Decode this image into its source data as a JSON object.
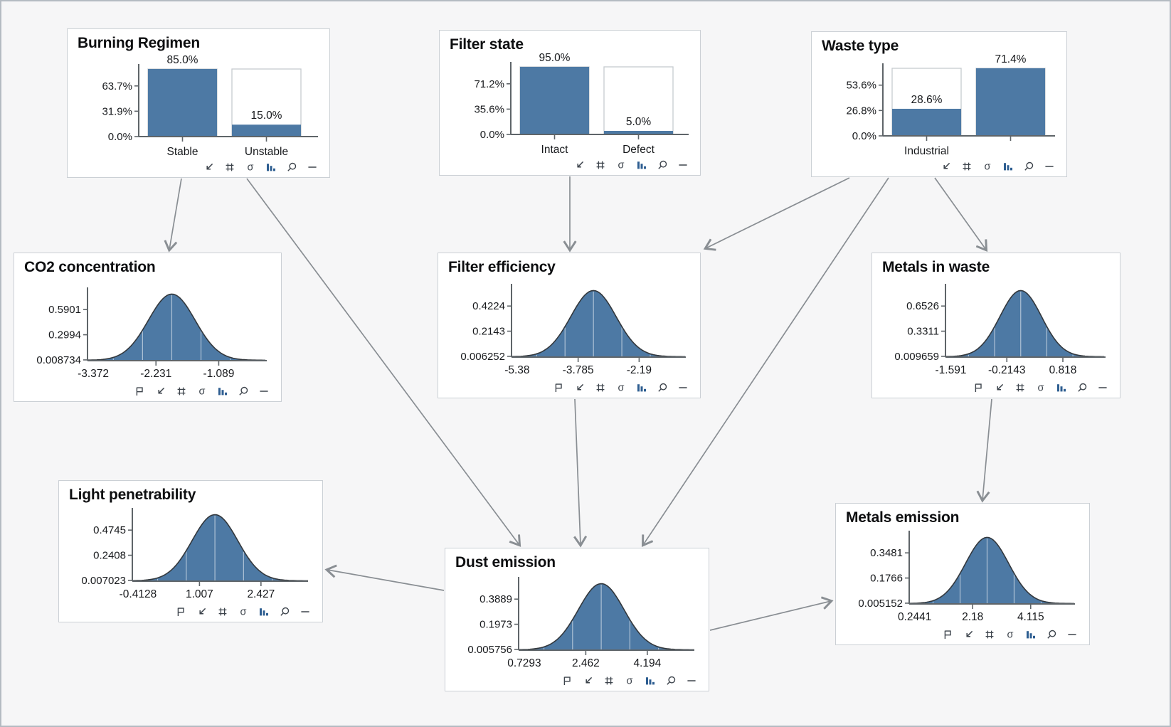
{
  "app": {
    "background": "#f6f6f7",
    "accent": "#4d79a4",
    "arrow_color": "#898e93"
  },
  "nodes": [
    {
      "id": "burning-regimen",
      "title": "Burning Regimen",
      "chart": {
        "type": "bar",
        "categories": [
          "Stable",
          "Unstable"
        ],
        "values": [
          85.0,
          15.0
        ],
        "value_labels": [
          "85.0%",
          "15.0%"
        ],
        "ymax": 85.0,
        "yticks": [
          0.0,
          31.9,
          63.7
        ],
        "ytick_labels": [
          "0.0%",
          "31.9%",
          "63.7%"
        ]
      },
      "toolbar": [
        "collapse-icon",
        "grid-icon",
        "sigma-icon",
        "barchart-icon",
        "zoom-icon",
        "minus-icon"
      ]
    },
    {
      "id": "filter-state",
      "title": "Filter state",
      "chart": {
        "type": "bar",
        "categories": [
          "Intact",
          "Defect"
        ],
        "values": [
          95.0,
          5.0
        ],
        "value_labels": [
          "95.0%",
          "5.0%"
        ],
        "ymax": 95.0,
        "yticks": [
          0.0,
          35.6,
          71.2
        ],
        "ytick_labels": [
          "0.0%",
          "35.6%",
          "71.2%"
        ]
      },
      "toolbar": [
        "collapse-icon",
        "grid-icon",
        "sigma-icon",
        "barchart-icon",
        "zoom-icon",
        "minus-icon"
      ]
    },
    {
      "id": "waste-type",
      "title": "Waste type",
      "chart": {
        "type": "bar",
        "categories": [
          "Industrial",
          ""
        ],
        "values": [
          28.6,
          71.4
        ],
        "value_labels": [
          "28.6%",
          "71.4%"
        ],
        "ymax": 71.4,
        "yticks": [
          0.0,
          26.8,
          53.6
        ],
        "ytick_labels": [
          "0.0%",
          "26.8%",
          "53.6%"
        ]
      },
      "toolbar": [
        "collapse-icon",
        "grid-icon",
        "sigma-icon",
        "barchart-icon",
        "zoom-icon",
        "minus-icon"
      ]
    },
    {
      "id": "co2-concentration",
      "title": "CO2 concentration",
      "chart": {
        "type": "area",
        "distribution": "gaussian",
        "yticks": [
          0.008734,
          0.2994,
          0.5901
        ],
        "ytick_labels": [
          "0.008734",
          "0.2994",
          "0.5901"
        ],
        "xticks": [
          -3.372,
          -2.231,
          -1.089
        ],
        "xtick_labels": [
          "-3.372",
          "-2.231",
          "-1.089"
        ]
      },
      "toolbar": [
        "flag-icon",
        "collapse-icon",
        "grid-icon",
        "sigma-icon",
        "barchart-icon",
        "zoom-icon",
        "minus-icon"
      ]
    },
    {
      "id": "filter-efficiency",
      "title": "Filter efficiency",
      "chart": {
        "type": "area",
        "distribution": "gaussian",
        "yticks": [
          0.006252,
          0.2143,
          0.4224
        ],
        "ytick_labels": [
          "0.006252",
          "0.2143",
          "0.4224"
        ],
        "xticks": [
          -5.38,
          -3.785,
          -2.19
        ],
        "xtick_labels": [
          "-5.38",
          "-3.785",
          "-2.19"
        ]
      },
      "toolbar": [
        "flag-icon",
        "collapse-icon",
        "grid-icon",
        "sigma-icon",
        "barchart-icon",
        "zoom-icon",
        "minus-icon"
      ]
    },
    {
      "id": "metals-in-waste",
      "title": "Metals in waste",
      "chart": {
        "type": "area",
        "distribution": "gaussian",
        "yticks": [
          0.009659,
          0.3311,
          0.6526
        ],
        "ytick_labels": [
          "0.009659",
          "0.3311",
          "0.6526"
        ],
        "xticks": [
          -1.591,
          -0.2143,
          0.818
        ],
        "xtick_labels": [
          "-1.591",
          "-0.2143",
          "0.818"
        ]
      },
      "toolbar": [
        "flag-icon",
        "collapse-icon",
        "grid-icon",
        "sigma-icon",
        "barchart-icon",
        "zoom-icon",
        "minus-icon"
      ]
    },
    {
      "id": "light-penetrability",
      "title": "Light penetrability",
      "chart": {
        "type": "area",
        "distribution": "gaussian",
        "yticks": [
          0.007023,
          0.2408,
          0.4745
        ],
        "ytick_labels": [
          "0.007023",
          "0.2408",
          "0.4745"
        ],
        "xticks": [
          -0.4128,
          1.007,
          2.427
        ],
        "xtick_labels": [
          "-0.4128",
          "1.007",
          "2.427"
        ]
      },
      "toolbar": [
        "flag-icon",
        "collapse-icon",
        "grid-icon",
        "sigma-icon",
        "barchart-icon",
        "zoom-icon",
        "minus-icon"
      ]
    },
    {
      "id": "dust-emission",
      "title": "Dust emission",
      "chart": {
        "type": "area",
        "distribution": "gaussian",
        "yticks": [
          0.005756,
          0.1973,
          0.3889
        ],
        "ytick_labels": [
          "0.005756",
          "0.1973",
          "0.3889"
        ],
        "xticks": [
          0.7293,
          2.462,
          4.194
        ],
        "xtick_labels": [
          "0.7293",
          "2.462",
          "4.194"
        ]
      },
      "toolbar": [
        "flag-icon",
        "collapse-icon",
        "grid-icon",
        "sigma-icon",
        "barchart-icon",
        "zoom-icon",
        "minus-icon"
      ]
    },
    {
      "id": "metals-emission",
      "title": "Metals emission",
      "chart": {
        "type": "area",
        "distribution": "gaussian",
        "yticks": [
          0.005152,
          0.1766,
          0.3481
        ],
        "ytick_labels": [
          "0.005152",
          "0.1766",
          "0.3481"
        ],
        "xticks": [
          0.2441,
          2.18,
          4.115
        ],
        "xtick_labels": [
          "0.2441",
          "2.18",
          "4.115"
        ]
      },
      "toolbar": [
        "flag-icon",
        "collapse-icon",
        "grid-icon",
        "sigma-icon",
        "barchart-icon",
        "zoom-icon",
        "minus-icon"
      ]
    }
  ],
  "edges": [
    {
      "from": "burning-regimen",
      "to": "co2-concentration"
    },
    {
      "from": "burning-regimen",
      "to": "dust-emission"
    },
    {
      "from": "filter-state",
      "to": "filter-efficiency"
    },
    {
      "from": "waste-type",
      "to": "filter-efficiency"
    },
    {
      "from": "waste-type",
      "to": "dust-emission"
    },
    {
      "from": "waste-type",
      "to": "metals-in-waste"
    },
    {
      "from": "filter-efficiency",
      "to": "dust-emission"
    },
    {
      "from": "metals-in-waste",
      "to": "metals-emission"
    },
    {
      "from": "dust-emission",
      "to": "light-penetrability"
    },
    {
      "from": "dust-emission",
      "to": "metals-emission"
    }
  ]
}
